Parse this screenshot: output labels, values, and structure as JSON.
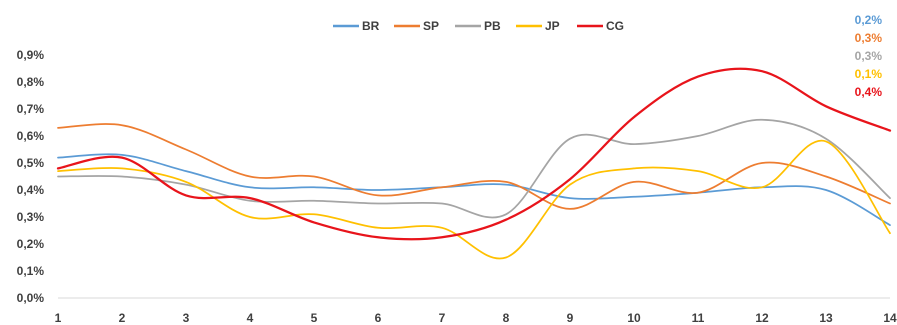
{
  "chart_data": {
    "type": "line",
    "title": "",
    "xlabel": "",
    "ylabel": "",
    "x": [
      1,
      2,
      3,
      4,
      5,
      6,
      7,
      8,
      9,
      10,
      11,
      12,
      13,
      14
    ],
    "ylim": [
      0,
      0.9
    ],
    "yticks": [
      "0,0%",
      "0,1%",
      "0,2%",
      "0,3%",
      "0,4%",
      "0,5%",
      "0,6%",
      "0,7%",
      "0,8%",
      "0,9%"
    ],
    "grid": false,
    "legend_position": "top",
    "smooth": true,
    "series": [
      {
        "name": "BR",
        "color": "#5b9bd5",
        "values": [
          0.52,
          0.53,
          0.47,
          0.41,
          0.41,
          0.4,
          0.41,
          0.42,
          0.37,
          0.375,
          0.39,
          0.41,
          0.4,
          0.27
        ]
      },
      {
        "name": "SP",
        "color": "#ed7d31",
        "values": [
          0.63,
          0.64,
          0.55,
          0.45,
          0.45,
          0.38,
          0.41,
          0.43,
          0.33,
          0.43,
          0.39,
          0.5,
          0.45,
          0.35
        ]
      },
      {
        "name": "PB",
        "color": "#a5a5a5",
        "values": [
          0.45,
          0.45,
          0.42,
          0.36,
          0.36,
          0.35,
          0.35,
          0.31,
          0.59,
          0.57,
          0.6,
          0.66,
          0.59,
          0.37
        ]
      },
      {
        "name": "JP",
        "color": "#ffc000",
        "values": [
          0.47,
          0.48,
          0.43,
          0.3,
          0.31,
          0.26,
          0.26,
          0.15,
          0.42,
          0.48,
          0.47,
          0.41,
          0.58,
          0.24
        ]
      },
      {
        "name": "CG",
        "color": "#e8141b",
        "values": [
          0.48,
          0.52,
          0.38,
          0.37,
          0.28,
          0.225,
          0.225,
          0.29,
          0.44,
          0.67,
          0.82,
          0.84,
          0.71,
          0.62
        ]
      }
    ],
    "side_labels": [
      {
        "text": "0,2%",
        "color": "#5b9bd5"
      },
      {
        "text": "0,3%",
        "color": "#ed7d31"
      },
      {
        "text": "0,3%",
        "color": "#a5a5a5"
      },
      {
        "text": "0,1%",
        "color": "#ffc000"
      },
      {
        "text": "0,4%",
        "color": "#e8141b"
      }
    ]
  }
}
